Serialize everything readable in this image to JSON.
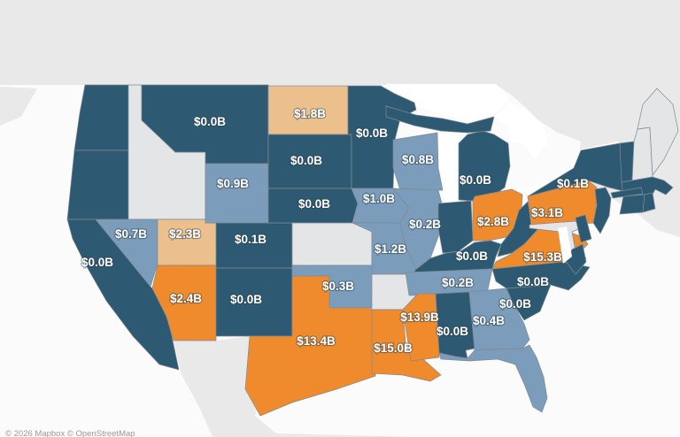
{
  "map": {
    "attribution": "© 2026 Mapbox © OpenStreetMap",
    "palette": {
      "dark": "#2d5a72",
      "medium": "#7b9cba",
      "tan": "#ecc08c",
      "orange": "#ef8b2c",
      "no_data": "#e4e5e7",
      "foreign_land": "#e9e9ea",
      "ocean": "#fbfbfc",
      "water": "#ffffff",
      "border": "#7f8a93",
      "label_color": "#ffffff"
    },
    "states": [
      {
        "id": "WA",
        "name": "Washington",
        "category": "dark",
        "value": ""
      },
      {
        "id": "OR",
        "name": "Oregon",
        "category": "dark",
        "value": ""
      },
      {
        "id": "CA",
        "name": "California",
        "category": "dark",
        "value": "$0.0B"
      },
      {
        "id": "ID",
        "name": "Idaho",
        "category": "no_data",
        "value": ""
      },
      {
        "id": "NV",
        "name": "Nevada",
        "category": "medium",
        "value": "$0.7B"
      },
      {
        "id": "UT",
        "name": "Utah",
        "category": "tan",
        "value": "$2.3B"
      },
      {
        "id": "AZ",
        "name": "Arizona",
        "category": "orange",
        "value": "$2.4B"
      },
      {
        "id": "MT",
        "name": "Montana",
        "category": "dark",
        "value": "$0.0B"
      },
      {
        "id": "WY",
        "name": "Wyoming",
        "category": "medium",
        "value": "$0.9B"
      },
      {
        "id": "CO",
        "name": "Colorado",
        "category": "dark",
        "value": "$0.1B"
      },
      {
        "id": "NM",
        "name": "New Mexico",
        "category": "dark",
        "value": "$0.0B"
      },
      {
        "id": "ND",
        "name": "North Dakota",
        "category": "tan",
        "value": "$1.8B"
      },
      {
        "id": "SD",
        "name": "South Dakota",
        "category": "dark",
        "value": "$0.0B"
      },
      {
        "id": "NE",
        "name": "Nebraska",
        "category": "dark",
        "value": "$0.0B"
      },
      {
        "id": "KS",
        "name": "Kansas",
        "category": "no_data",
        "value": ""
      },
      {
        "id": "OK",
        "name": "Oklahoma",
        "category": "medium",
        "value": "$0.3B"
      },
      {
        "id": "TX",
        "name": "Texas",
        "category": "orange",
        "value": "$13.4B"
      },
      {
        "id": "MN",
        "name": "Minnesota",
        "category": "dark",
        "value": "$0.0B"
      },
      {
        "id": "IA",
        "name": "Iowa",
        "category": "medium",
        "value": "$1.0B"
      },
      {
        "id": "MO",
        "name": "Missouri",
        "category": "medium",
        "value": "$1.2B"
      },
      {
        "id": "AR",
        "name": "Arkansas",
        "category": "no_data",
        "value": ""
      },
      {
        "id": "LA",
        "name": "Louisiana",
        "category": "orange",
        "value": "$15.0B"
      },
      {
        "id": "WI",
        "name": "Wisconsin",
        "category": "medium",
        "value": "$0.8B"
      },
      {
        "id": "IL",
        "name": "Illinois",
        "category": "medium",
        "value": "$0.2B"
      },
      {
        "id": "MI",
        "name": "Michigan",
        "category": "dark",
        "value": "$0.0B"
      },
      {
        "id": "IN",
        "name": "Indiana",
        "category": "dark",
        "value": ""
      },
      {
        "id": "OH",
        "name": "Ohio",
        "category": "orange",
        "value": "$2.8B"
      },
      {
        "id": "KY",
        "name": "Kentucky",
        "category": "dark",
        "value": "$0.0B"
      },
      {
        "id": "TN",
        "name": "Tennessee",
        "category": "medium",
        "value": "$0.2B"
      },
      {
        "id": "MS",
        "name": "Mississippi",
        "category": "orange",
        "value": "$13.9B"
      },
      {
        "id": "AL",
        "name": "Alabama",
        "category": "dark",
        "value": "$0.0B"
      },
      {
        "id": "GA",
        "name": "Georgia",
        "category": "medium",
        "value": "$0.4B"
      },
      {
        "id": "FL",
        "name": "Florida",
        "category": "medium",
        "value": ""
      },
      {
        "id": "SC",
        "name": "South Carolina",
        "category": "dark",
        "value": "$0.0B"
      },
      {
        "id": "NC",
        "name": "North Carolina",
        "category": "dark",
        "value": "$0.0B"
      },
      {
        "id": "VA",
        "name": "Virginia",
        "category": "orange",
        "value": "$15.3B"
      },
      {
        "id": "WV",
        "name": "West Virginia",
        "category": "dark",
        "value": ""
      },
      {
        "id": "PA",
        "name": "Pennsylvania",
        "category": "orange",
        "value": "$3.1B"
      },
      {
        "id": "MD",
        "name": "Maryland",
        "category": "no_data",
        "value": ""
      },
      {
        "id": "DE",
        "name": "Delaware",
        "category": "dark",
        "value": ""
      },
      {
        "id": "NJ",
        "name": "New Jersey",
        "category": "dark",
        "value": ""
      },
      {
        "id": "NY",
        "name": "New York",
        "category": "dark",
        "value": "$0.1B"
      },
      {
        "id": "VT",
        "name": "Vermont",
        "category": "dark",
        "value": ""
      },
      {
        "id": "NH",
        "name": "New Hampshire",
        "category": "no_data",
        "value": ""
      },
      {
        "id": "ME",
        "name": "Maine",
        "category": "no_data",
        "value": ""
      },
      {
        "id": "MA",
        "name": "Massachusetts",
        "category": "dark",
        "value": ""
      },
      {
        "id": "CT",
        "name": "Connecticut",
        "category": "dark",
        "value": ""
      },
      {
        "id": "RI",
        "name": "Rhode Island",
        "category": "dark",
        "value": ""
      }
    ]
  }
}
